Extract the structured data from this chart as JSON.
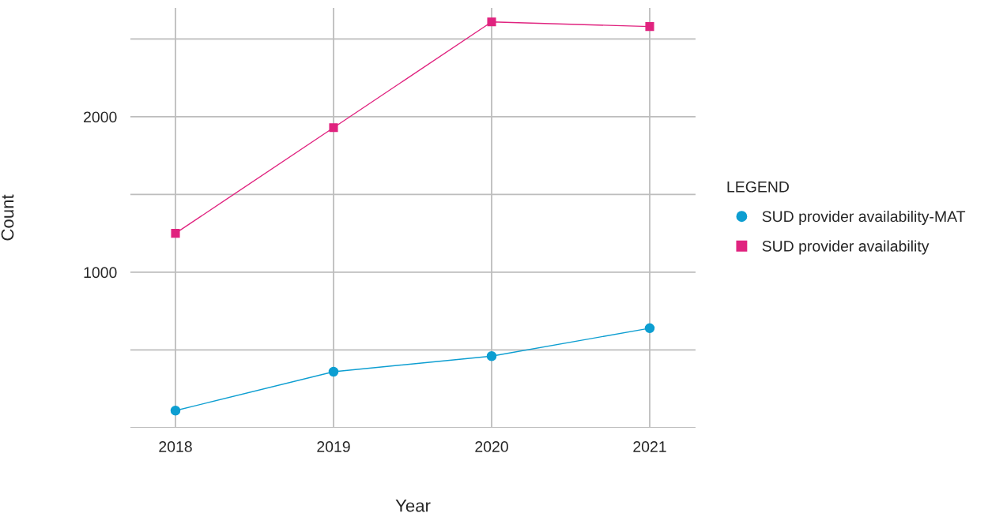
{
  "chart_data": {
    "type": "line",
    "xlabel": "Year",
    "ylabel": "Count",
    "legend_title": "LEGEND",
    "categories": [
      "2018",
      "2019",
      "2020",
      "2021"
    ],
    "series": [
      {
        "name": "SUD provider availability-MAT",
        "color": "#0d9ed1",
        "marker": "circle",
        "values": [
          110,
          360,
          460,
          640
        ]
      },
      {
        "name": "SUD provider availability",
        "color": "#e0237f",
        "marker": "square",
        "values": [
          1250,
          1930,
          2610,
          2580
        ]
      }
    ],
    "ylim": [
      0,
      2700
    ],
    "yticks": [
      {
        "value": 0,
        "label": null
      },
      {
        "value": 500,
        "label": null
      },
      1000,
      {
        "value": 1500,
        "label": null
      },
      2000,
      {
        "value": 2500,
        "label": null
      }
    ],
    "grid": true,
    "legend": "right",
    "line_style": "solid"
  }
}
